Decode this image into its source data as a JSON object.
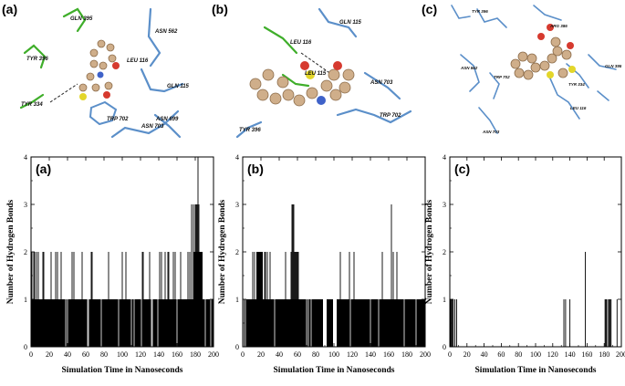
{
  "panels": [
    {
      "letter": "(a)",
      "residues": [
        "GLN 395",
        "TYR 396",
        "ASN 562",
        "LEU 116",
        "GLN 115",
        "TYR 334",
        "TRP 702",
        "ASN 699",
        "ASN 703"
      ]
    },
    {
      "letter": "(b)",
      "residues": [
        "GLN 115",
        "LEU 116",
        "LEU 115",
        "ASN 703",
        "TRP 702",
        "TYR 396"
      ]
    },
    {
      "letter": "(c)",
      "residues": [
        "TYR 396",
        "ARG 386",
        "ASN 562",
        "TRP 702",
        "TYR 334",
        "LEU 116",
        "GLN 395",
        "ASN 703"
      ]
    }
  ],
  "chart_data": [
    {
      "type": "bar",
      "inset_label": "(a)",
      "xlabel": "Simulation Time in Nanoseconds",
      "ylabel": "Number of Hydrogen Bonds",
      "xlim": [
        0,
        200
      ],
      "ylim": [
        0,
        4
      ],
      "xticks": [
        "0",
        "20",
        "40",
        "60",
        "80",
        "100",
        "120",
        "140",
        "160",
        "180",
        "200"
      ],
      "yticks": [
        "0",
        "1",
        "2",
        "3",
        "4"
      ],
      "segments": [
        {
          "start": 0,
          "end": 178,
          "value": 1
        },
        {
          "start": 178,
          "end": 188,
          "value": 2
        },
        {
          "start": 188,
          "end": 200,
          "value": 1
        }
      ],
      "spikes": [
        [
          1,
          2
        ],
        [
          3,
          2
        ],
        [
          4,
          2
        ],
        [
          6,
          2
        ],
        [
          8,
          2
        ],
        [
          13,
          2
        ],
        [
          14,
          2
        ],
        [
          22,
          2
        ],
        [
          27,
          2
        ],
        [
          29,
          2
        ],
        [
          33,
          2
        ],
        [
          45,
          2
        ],
        [
          47,
          2
        ],
        [
          56,
          2
        ],
        [
          66,
          2
        ],
        [
          67,
          2
        ],
        [
          85,
          2
        ],
        [
          100,
          2
        ],
        [
          104,
          2
        ],
        [
          122,
          2
        ],
        [
          123,
          2
        ],
        [
          130,
          2
        ],
        [
          141,
          2
        ],
        [
          143,
          2
        ],
        [
          147,
          2
        ],
        [
          150,
          2
        ],
        [
          151,
          2
        ],
        [
          156,
          2
        ],
        [
          158,
          2
        ],
        [
          164,
          2
        ],
        [
          172,
          2
        ],
        [
          174,
          2
        ],
        [
          176,
          3
        ],
        [
          178,
          3
        ],
        [
          180,
          3
        ],
        [
          181,
          3
        ],
        [
          182,
          3
        ],
        [
          183,
          4
        ],
        [
          184,
          3
        ],
        [
          38,
          0
        ],
        [
          40,
          0
        ],
        [
          62,
          0
        ],
        [
          63,
          0
        ],
        [
          77,
          0
        ],
        [
          96,
          0
        ],
        [
          110,
          0
        ],
        [
          113,
          0
        ],
        [
          121,
          0
        ],
        [
          132,
          0
        ],
        [
          133,
          0
        ],
        [
          139,
          0
        ],
        [
          160,
          0
        ],
        [
          191,
          0
        ],
        [
          197,
          0
        ]
      ]
    },
    {
      "type": "bar",
      "inset_label": "(b)",
      "xlabel": "Simulation Time in Nanoseconds",
      "ylabel": "Number of Hydrogen Bonds",
      "xlim": [
        0,
        200
      ],
      "ylim": [
        0,
        4
      ],
      "xticks": [
        "0",
        "20",
        "40",
        "60",
        "80",
        "100",
        "120",
        "140",
        "160",
        "180",
        "200"
      ],
      "yticks": [
        "0",
        "1",
        "2",
        "3",
        "4"
      ],
      "segments": [
        {
          "start": 0,
          "end": 88,
          "value": 1
        },
        {
          "start": 15,
          "end": 22,
          "value": 2
        },
        {
          "start": 92,
          "end": 99,
          "value": 1
        },
        {
          "start": 103,
          "end": 200,
          "value": 1
        }
      ],
      "spikes": [
        [
          11,
          2
        ],
        [
          13,
          2
        ],
        [
          24,
          2
        ],
        [
          25,
          2
        ],
        [
          27,
          2
        ],
        [
          30,
          2
        ],
        [
          47,
          2
        ],
        [
          53,
          2
        ],
        [
          54,
          3
        ],
        [
          55,
          3
        ],
        [
          56,
          3
        ],
        [
          57,
          2
        ],
        [
          58,
          2
        ],
        [
          59,
          2
        ],
        [
          60,
          2
        ],
        [
          61,
          2
        ],
        [
          107,
          2
        ],
        [
          117,
          2
        ],
        [
          122,
          2
        ],
        [
          153,
          2
        ],
        [
          163,
          3
        ],
        [
          165,
          2
        ],
        [
          169,
          2
        ],
        [
          1,
          0
        ],
        [
          3,
          0
        ],
        [
          35,
          0
        ],
        [
          70,
          0
        ],
        [
          72,
          0
        ],
        [
          75,
          0
        ],
        [
          101,
          0
        ],
        [
          102,
          0
        ],
        [
          118,
          0
        ],
        [
          140,
          0
        ],
        [
          149,
          0
        ],
        [
          177,
          0
        ],
        [
          190,
          0
        ]
      ]
    },
    {
      "type": "bar",
      "inset_label": "(c)",
      "xlabel": "Simulation Time in Nanoseconds",
      "ylabel": "Number of Hydrogen Bonds",
      "xlim": [
        0,
        200
      ],
      "ylim": [
        0,
        4
      ],
      "xticks": [
        "0",
        "20",
        "40",
        "60",
        "80",
        "100",
        "120",
        "140",
        "160",
        "180",
        "200"
      ],
      "yticks": [
        "0",
        "1",
        "2",
        "3",
        "4"
      ],
      "segments": [],
      "spikes": [
        [
          1,
          1
        ],
        [
          2,
          1
        ],
        [
          3,
          1
        ],
        [
          4,
          1
        ],
        [
          6,
          1
        ],
        [
          8,
          1
        ],
        [
          133,
          1
        ],
        [
          135,
          1
        ],
        [
          140,
          1
        ],
        [
          158,
          2
        ],
        [
          181,
          1
        ],
        [
          182,
          1
        ],
        [
          183,
          1
        ],
        [
          185,
          1
        ],
        [
          186,
          1
        ],
        [
          187,
          1
        ],
        [
          188,
          1
        ],
        [
          195,
          1
        ]
      ]
    }
  ]
}
